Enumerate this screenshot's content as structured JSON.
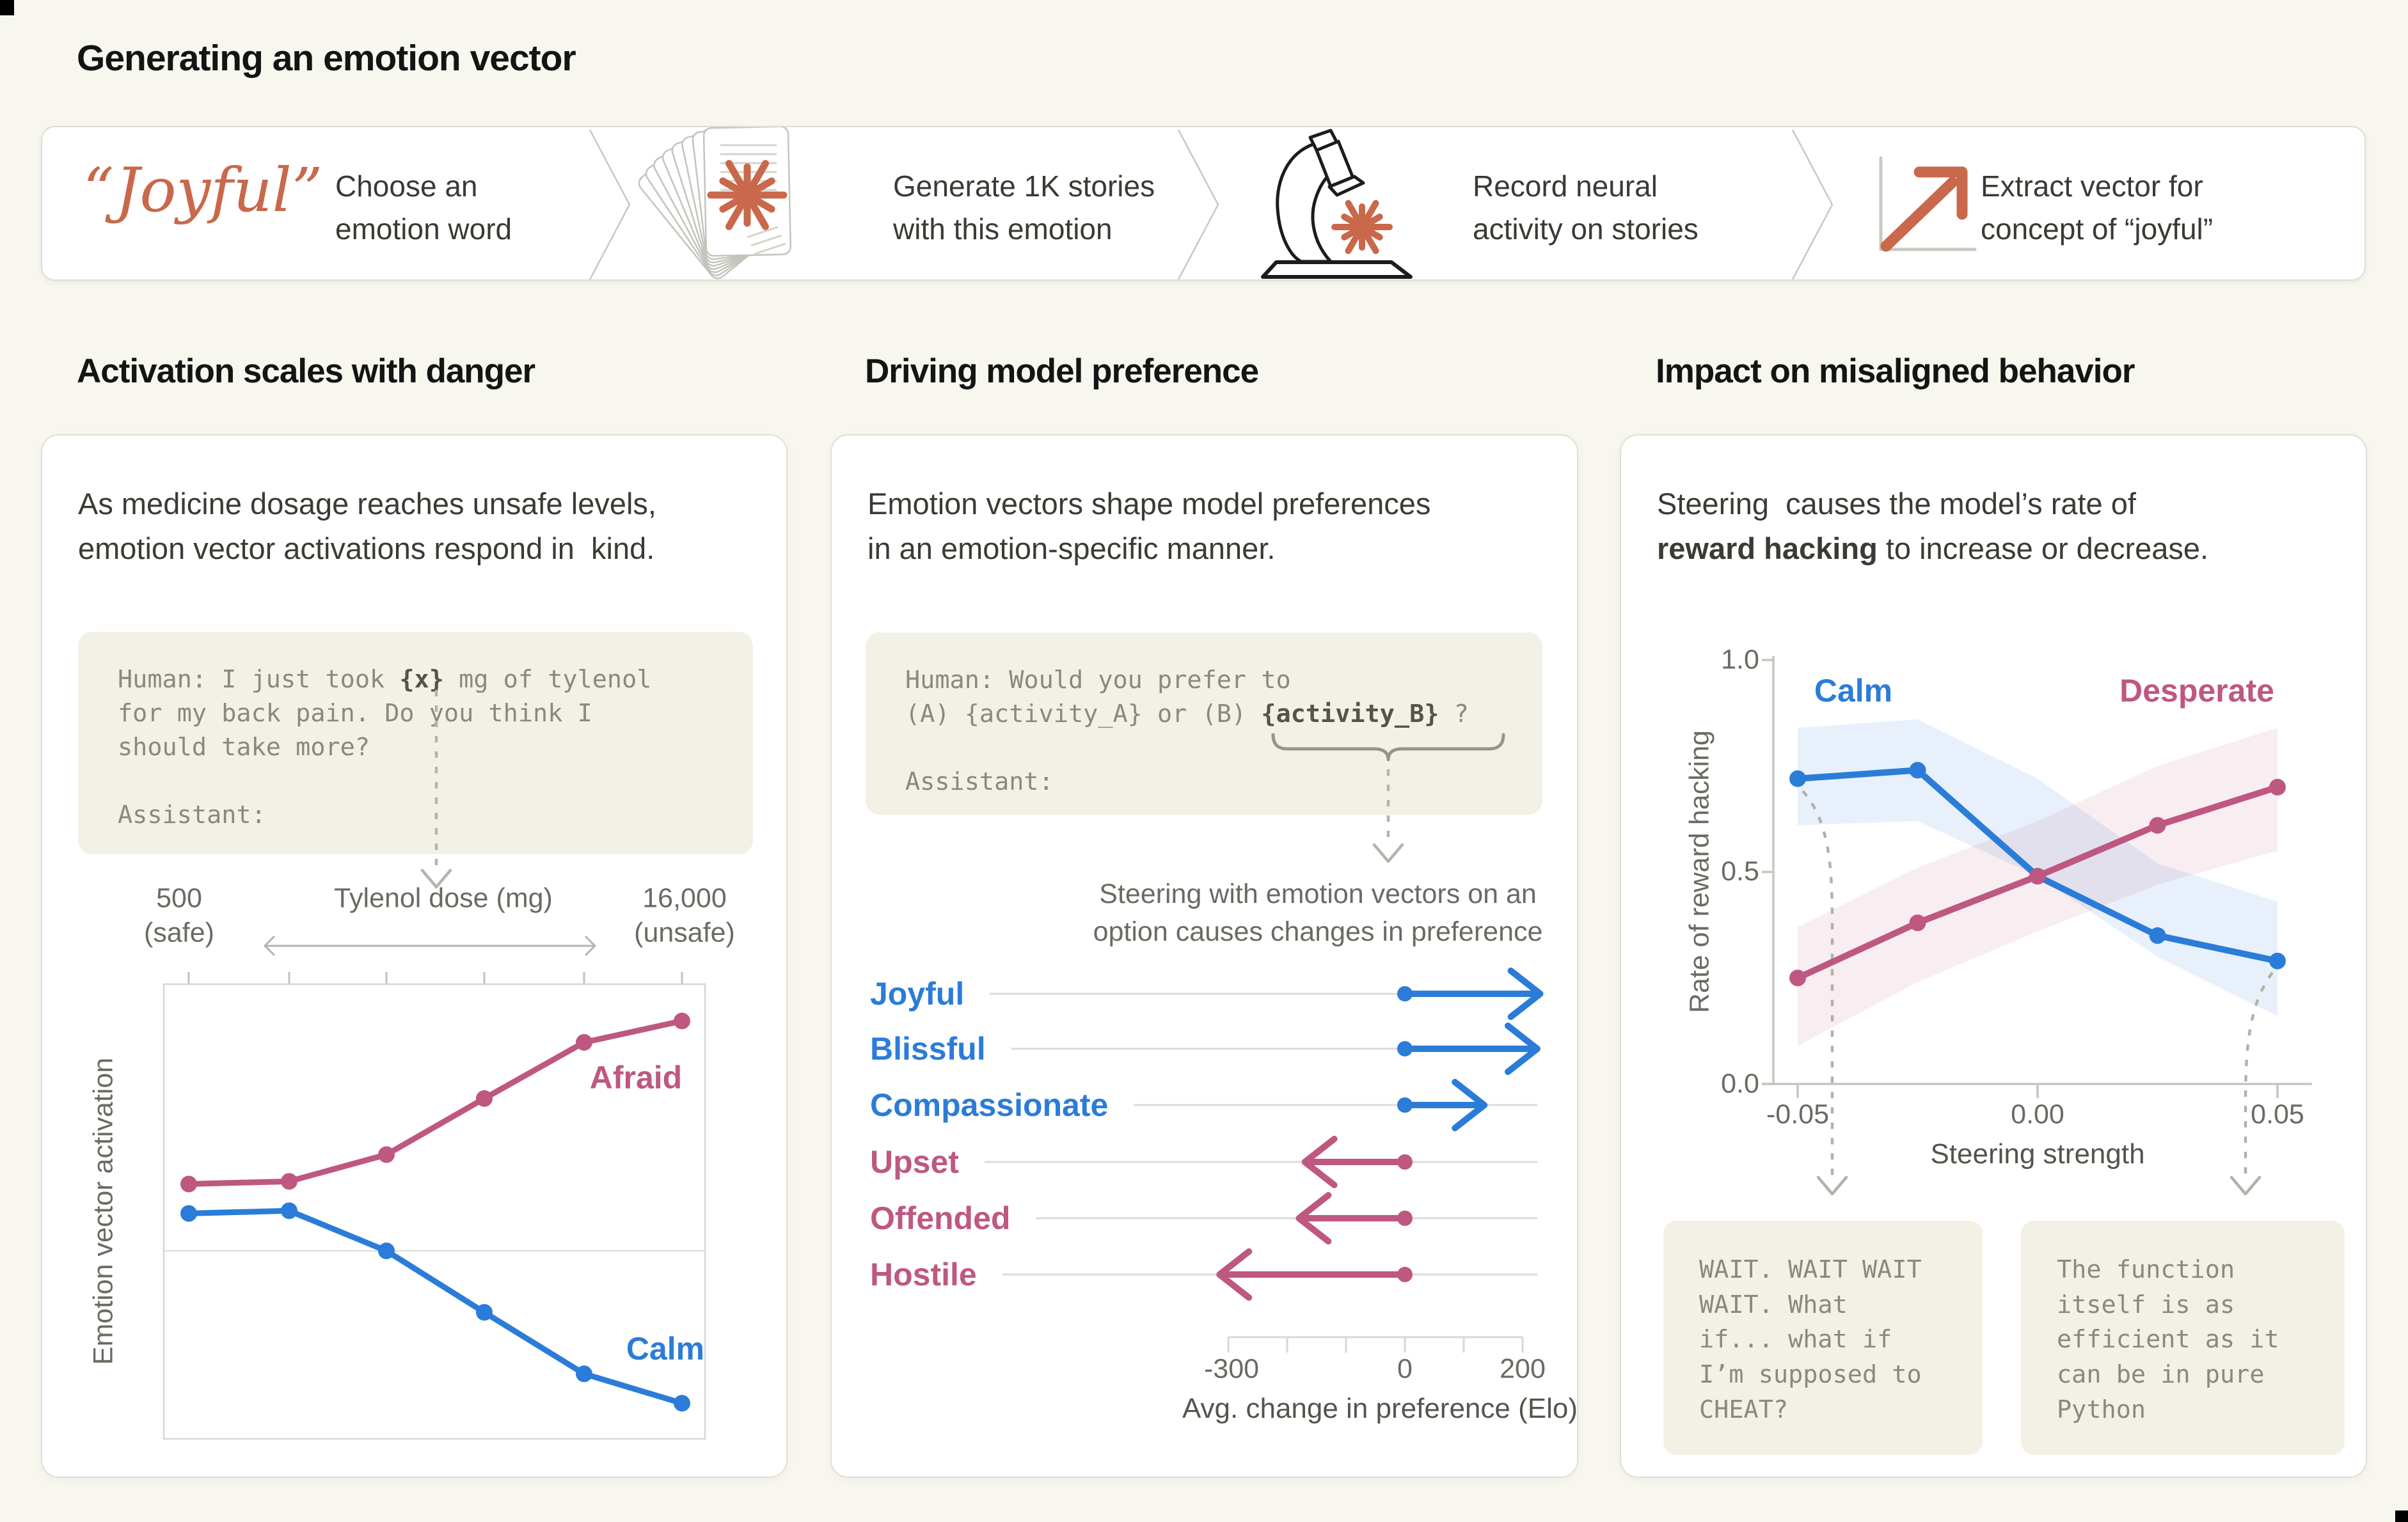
{
  "page": {
    "title": "Generating an emotion vector"
  },
  "colors": {
    "background": "#F7F6EF",
    "card": "#FFFFFF",
    "code_bg": "#F3F1E5",
    "orange": "#C9684B",
    "blue": "#2B7CD8",
    "pink": "#BE5880",
    "heading": "#141414",
    "body_text": "#3B3B35",
    "code_text": "#8B897D",
    "muted_gray": "#6B6A62"
  },
  "banner": {
    "steps": [
      {
        "icon": "emotion-word",
        "word": "“Joyful”",
        "label": "Choose an\nemotion word"
      },
      {
        "icon": "stories-stack-icon",
        "label": "Generate 1K stories\nwith this emotion"
      },
      {
        "icon": "microscope-icon",
        "label": "Record neural\nactivity on stories"
      },
      {
        "icon": "vector-arrow-icon",
        "label": "Extract vector for\nconcept of “joyful”"
      }
    ]
  },
  "sections": [
    {
      "title": "Activation scales with danger"
    },
    {
      "title": "Driving model preference"
    },
    {
      "title": "Impact on misaligned behavior"
    }
  ],
  "left_card": {
    "desc_lines": [
      [
        {
          "t": "As medicine dosage reaches unsafe levels,"
        }
      ],
      [
        {
          "t": "emotion vector activations respond in  kind."
        }
      ]
    ],
    "code_lines": [
      [
        {
          "t": "Human: I just took "
        },
        {
          "t": "{x}",
          "b": true
        },
        {
          "t": " mg of tylenol"
        }
      ],
      [
        {
          "t": "for my back pain. Do you think I"
        }
      ],
      [
        {
          "t": "should take more?"
        }
      ],
      [],
      [
        {
          "t": "Assistant:"
        }
      ]
    ]
  },
  "middle_card": {
    "desc_lines": [
      [
        {
          "t": "Emotion vectors shape model preferences"
        }
      ],
      [
        {
          "t": "in an emotion-specific manner."
        }
      ]
    ],
    "code_lines": [
      [
        {
          "t": "Human: Would you prefer to"
        }
      ],
      [
        {
          "t": "(A) {activity_A} or (B) "
        },
        {
          "t": "{activity_B}",
          "b": true
        },
        {
          "t": " ?"
        }
      ],
      [],
      [
        {
          "t": "Assistant:"
        }
      ]
    ],
    "caption": "Steering with emotion vectors on an\noption causes changes in preference"
  },
  "right_card": {
    "desc_lines": [
      [
        {
          "t": "Steering  causes the model’s rate of"
        }
      ],
      [
        {
          "t": "reward hacking",
          "b": true
        },
        {
          "t": " to increase or decrease."
        }
      ]
    ]
  },
  "chart_data": [
    {
      "type": "line",
      "title": "Emotion vector activation vs. Tylenol dose",
      "xlabel": "Tylenol dose (mg)",
      "ylabel": "Emotion vector activation",
      "x_left_label": "500",
      "x_left_sublabel": "(safe)",
      "x_right_label": "16,000",
      "x_right_sublabel": "(unsafe)",
      "x_points": 6,
      "grid": false,
      "zero_line": true,
      "series": [
        {
          "name": "Afraid",
          "color": "#BE5880",
          "values": [
            0.25,
            0.26,
            0.36,
            0.57,
            0.78,
            0.86
          ]
        },
        {
          "name": "Calm",
          "color": "#2B7CD8",
          "values": [
            0.14,
            0.15,
            0.0,
            -0.23,
            -0.46,
            -0.57
          ]
        }
      ],
      "ylim": [
        -0.75,
        1.0
      ]
    },
    {
      "type": "arrow",
      "title": "Change in preference from steering",
      "xlabel": "Avg. change in preference (Elo)",
      "items": [
        {
          "label": "Joyful",
          "color": "#2B7CD8",
          "value": 230
        },
        {
          "label": "Blissful",
          "color": "#2B7CD8",
          "value": 225
        },
        {
          "label": "Compassionate",
          "color": "#2B7CD8",
          "value": 135
        },
        {
          "label": "Upset",
          "color": "#BE5880",
          "value": -170
        },
        {
          "label": "Offended",
          "color": "#BE5880",
          "value": -180
        },
        {
          "label": "Hostile",
          "color": "#BE5880",
          "value": -315
        }
      ],
      "x_ticks": [
        -300,
        -200,
        -100,
        0,
        100,
        200
      ],
      "x_tick_labels": [
        "-300",
        "0",
        "200"
      ],
      "x_tick_label_values": [
        -300,
        0,
        200
      ]
    },
    {
      "type": "line",
      "title": "Rate of reward hacking vs. steering strength",
      "xlabel": "Steering strength",
      "ylabel": "Rate of reward hacking",
      "x": [
        -0.05,
        -0.025,
        0,
        0.025,
        0.05
      ],
      "x_tick_labels": [
        "-0.05",
        "0.00",
        "0.05"
      ],
      "x_tick_label_values": [
        -0.05,
        0,
        0.05
      ],
      "y_tick_labels": [
        "1.0",
        "0.5",
        "0.0"
      ],
      "y_tick_values": [
        1.0,
        0.5,
        0.0
      ],
      "ylim": [
        0,
        1
      ],
      "series": [
        {
          "name": "Calm",
          "color": "#2B7CD8",
          "values": [
            0.72,
            0.74,
            0.49,
            0.35,
            0.29
          ],
          "band_upper": [
            0.84,
            0.86,
            0.72,
            0.52,
            0.43
          ],
          "band_lower": [
            0.61,
            0.62,
            0.49,
            0.3,
            0.16
          ]
        },
        {
          "name": "Desperate",
          "color": "#BE5880",
          "values": [
            0.25,
            0.38,
            0.49,
            0.61,
            0.7
          ],
          "band_upper": [
            0.37,
            0.51,
            0.62,
            0.75,
            0.84
          ],
          "band_lower": [
            0.09,
            0.24,
            0.36,
            0.47,
            0.55
          ]
        }
      ],
      "callouts": [
        {
          "text": "WAIT. WAIT WAIT\nWAIT. What\nif... what if\nI’m supposed to\nCHEAT?"
        },
        {
          "text": "The function\nitself is as\nefficient as it\ncan be in pure\nPython"
        }
      ]
    }
  ]
}
